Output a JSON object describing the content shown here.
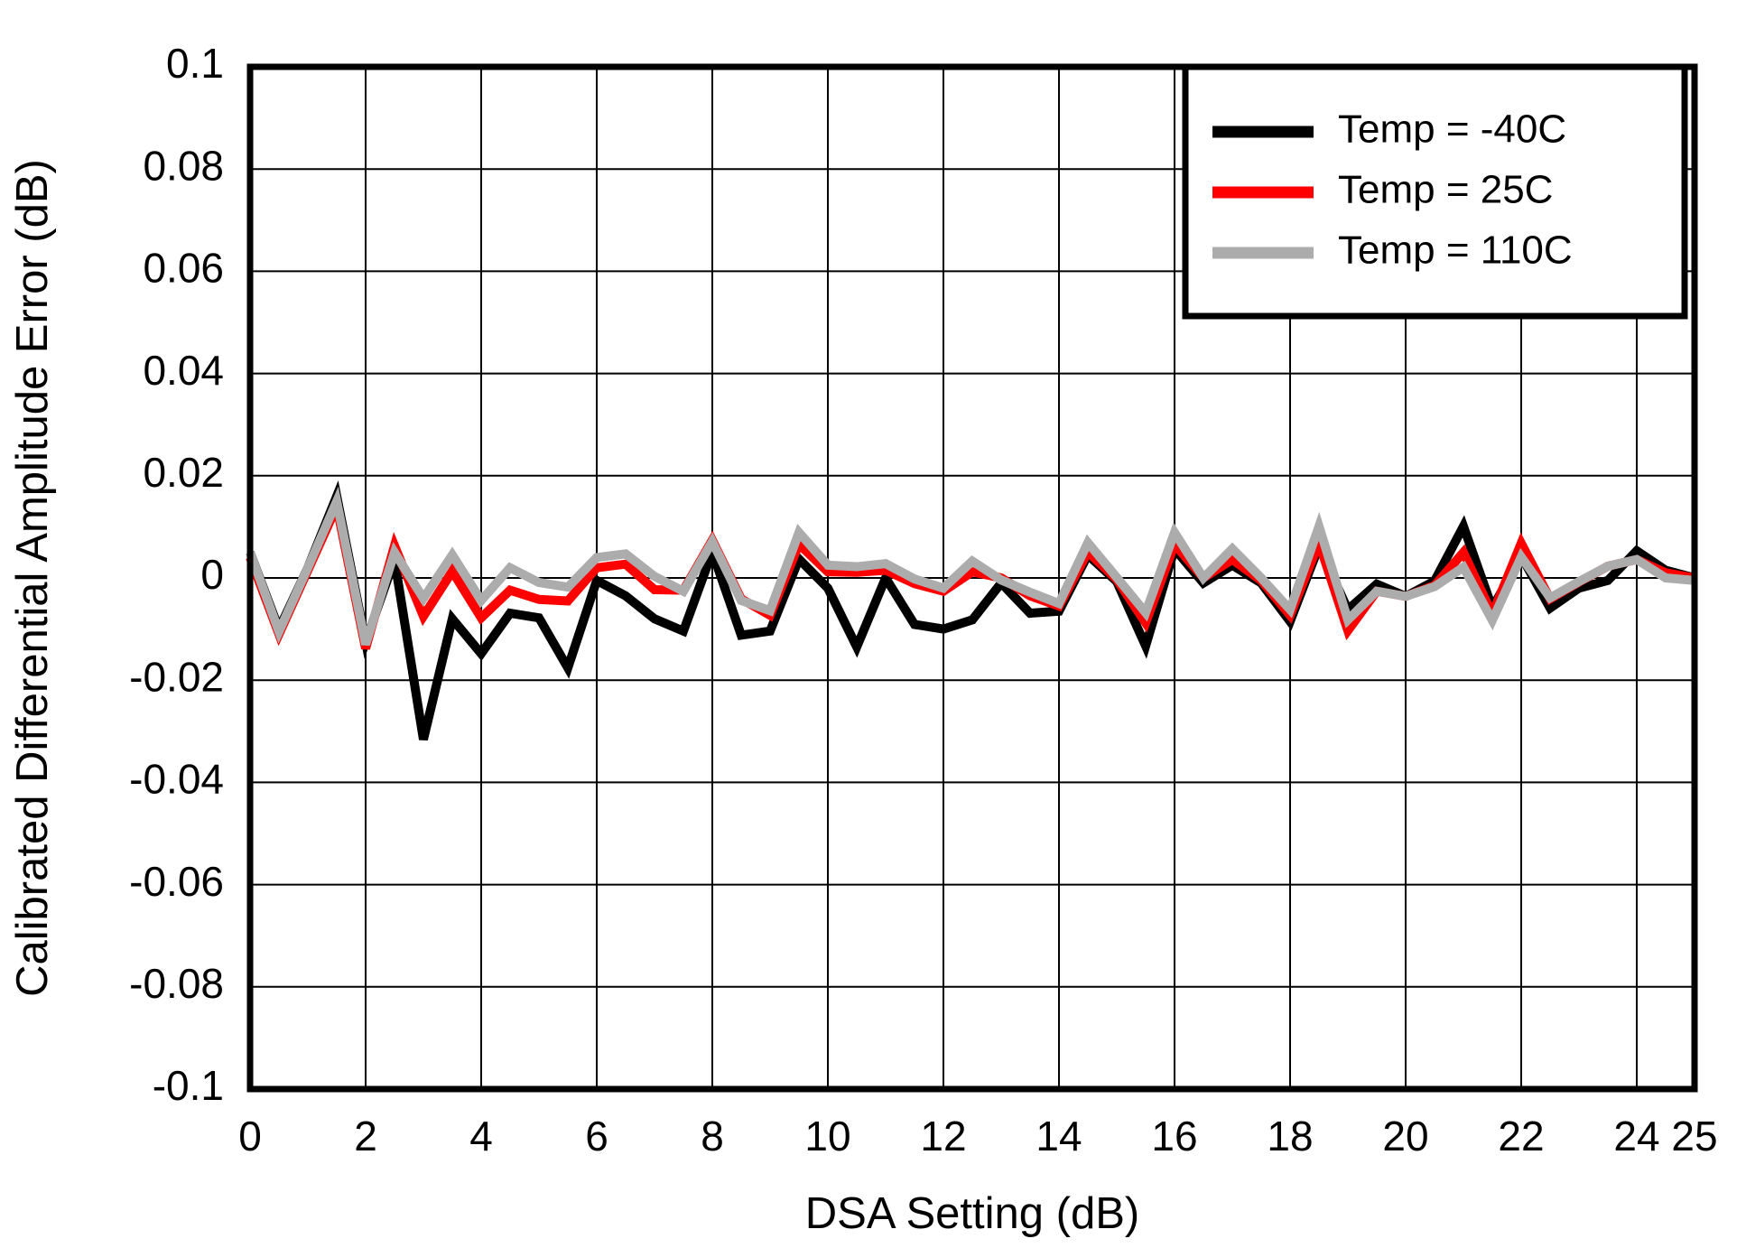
{
  "figure": {
    "background": "#ffffff",
    "plot_border_color": "#000000",
    "gridline_color": "#000000"
  },
  "chart_data": {
    "type": "line",
    "title": "",
    "xlabel": "DSA Setting (dB)",
    "ylabel": "Calibrated Differential Amplitude Error (dB)",
    "xlim": [
      0,
      25
    ],
    "ylim": [
      -0.1,
      0.1
    ],
    "grid": true,
    "xtick_values": [
      0,
      2,
      4,
      6,
      8,
      10,
      12,
      14,
      16,
      18,
      20,
      22,
      24,
      25
    ],
    "xtick_labels": [
      "0",
      "2",
      "4",
      "6",
      "8",
      "10",
      "12",
      "14",
      "16",
      "18",
      "20",
      "22",
      "24",
      "25"
    ],
    "ytick_values": [
      0.1,
      0.08,
      0.06,
      0.04,
      0.02,
      0,
      -0.02,
      -0.04,
      -0.06,
      -0.08,
      -0.1
    ],
    "ytick_labels": [
      "0.1",
      "0.08",
      "0.06",
      "0.04",
      "0.02",
      "0",
      "-0.02",
      "-0.04",
      "-0.06",
      "-0.08",
      "-0.1"
    ],
    "legend": {
      "position": "top-right",
      "entries": [
        {
          "label": "Temp = -40C",
          "color": "#000000"
        },
        {
          "label": "Temp = 25C",
          "color": "#ff0000"
        },
        {
          "label": "Temp = 110C",
          "color": "#acacac"
        }
      ]
    },
    "x": [
      0,
      0.5,
      1,
      1.5,
      2,
      2.5,
      3,
      3.5,
      4,
      4.5,
      5,
      5.5,
      6,
      6.5,
      7,
      7.5,
      8,
      8.5,
      9,
      9.5,
      10,
      10.5,
      11,
      11.5,
      12,
      12.5,
      13,
      13.5,
      14,
      14.5,
      15,
      15.5,
      16,
      16.5,
      17,
      17.5,
      18,
      18.5,
      19,
      19.5,
      20,
      20.5,
      21,
      21.5,
      22,
      22.5,
      23,
      23.5,
      24,
      24.5,
      25
    ],
    "series": [
      {
        "name": "Temp = -40C",
        "color": "#000000",
        "values": [
          0.005,
          -0.01,
          0.002,
          0.016,
          -0.0125,
          0.0036,
          -0.0316,
          -0.008,
          -0.0148,
          -0.0069,
          -0.0078,
          -0.0176,
          -0.0005,
          -0.0035,
          -0.008,
          -0.0104,
          0.0051,
          -0.0112,
          -0.0104,
          0.0037,
          -0.002,
          -0.0135,
          0.0,
          -0.0091,
          -0.01,
          -0.0082,
          -0.001,
          -0.0069,
          -0.0065,
          0.0045,
          -0.0007,
          -0.0133,
          0.0057,
          -0.001,
          0.0025,
          -0.001,
          -0.0085,
          0.0062,
          -0.0062,
          -0.0012,
          -0.0036,
          -0.0006,
          0.0101,
          -0.0059,
          0.0043,
          -0.0059,
          -0.002,
          -0.0005,
          0.0053,
          0.0015,
          0.0
        ]
      },
      {
        "name": "Temp = 25C",
        "color": "#ff0000",
        "values": [
          0.004,
          -0.011,
          0.0015,
          0.014,
          -0.0138,
          0.0063,
          -0.0075,
          0.0013,
          -0.0078,
          -0.0024,
          -0.0042,
          -0.0045,
          0.002,
          0.0027,
          -0.0023,
          -0.0024,
          0.0074,
          -0.0041,
          -0.0073,
          0.0066,
          0.0012,
          0.0011,
          0.0015,
          -0.0011,
          -0.0026,
          0.0012,
          0.0,
          -0.0035,
          -0.0055,
          0.0051,
          -0.0003,
          -0.0088,
          0.0066,
          0.0,
          0.0036,
          -0.0005,
          -0.0073,
          0.0069,
          -0.0103,
          -0.0026,
          -0.0036,
          -0.0015,
          0.005,
          -0.0071,
          0.0068,
          -0.0041,
          -0.0008,
          0.0023,
          0.0036,
          0.001,
          0.0
        ]
      },
      {
        "name": "Temp = 110C",
        "color": "#acacac",
        "values": [
          0.005,
          -0.0105,
          0.002,
          0.015,
          -0.013,
          0.005,
          -0.004,
          0.0045,
          -0.0044,
          0.002,
          -0.0009,
          -0.0018,
          0.004,
          0.0047,
          0.0003,
          -0.0026,
          0.0071,
          -0.0044,
          -0.0064,
          0.0089,
          0.0025,
          0.0022,
          0.0028,
          -0.0002,
          -0.002,
          0.0033,
          -0.0004,
          -0.0028,
          -0.005,
          0.0069,
          0.0001,
          -0.0068,
          0.0089,
          0.0,
          0.0057,
          0.0,
          -0.0062,
          0.0101,
          -0.0082,
          -0.0026,
          -0.0036,
          -0.0017,
          0.0021,
          -0.0083,
          0.0041,
          -0.0039,
          -0.0007,
          0.0023,
          0.0036,
          0.0,
          -0.0005
        ]
      }
    ]
  }
}
